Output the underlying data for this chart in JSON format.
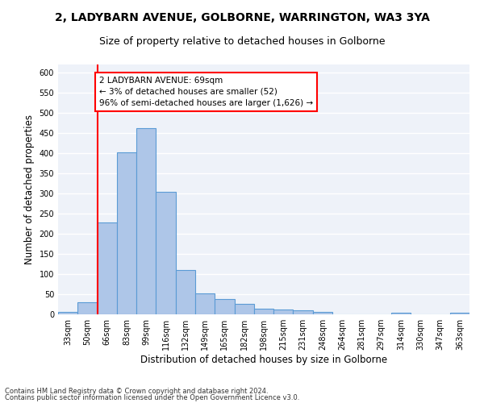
{
  "title": "2, LADYBARN AVENUE, GOLBORNE, WARRINGTON, WA3 3YA",
  "subtitle": "Size of property relative to detached houses in Golborne",
  "xlabel": "Distribution of detached houses by size in Golborne",
  "ylabel": "Number of detached properties",
  "categories": [
    "33sqm",
    "50sqm",
    "66sqm",
    "83sqm",
    "99sqm",
    "116sqm",
    "132sqm",
    "149sqm",
    "165sqm",
    "182sqm",
    "198sqm",
    "215sqm",
    "231sqm",
    "248sqm",
    "264sqm",
    "281sqm",
    "297sqm",
    "314sqm",
    "330sqm",
    "347sqm",
    "363sqm"
  ],
  "values": [
    7,
    30,
    228,
    403,
    463,
    305,
    110,
    53,
    39,
    26,
    14,
    12,
    10,
    6,
    0,
    0,
    0,
    5,
    0,
    0,
    5
  ],
  "bar_color": "#aec6e8",
  "bar_edge_color": "#5b9bd5",
  "property_line_x": 1.5,
  "annotation_text": "2 LADYBARN AVENUE: 69sqm\n← 3% of detached houses are smaller (52)\n96% of semi-detached houses are larger (1,626) →",
  "annotation_box_color": "white",
  "annotation_box_edge_color": "red",
  "vline_color": "red",
  "ylim": [
    0,
    620
  ],
  "yticks": [
    0,
    50,
    100,
    150,
    200,
    250,
    300,
    350,
    400,
    450,
    500,
    550,
    600
  ],
  "bg_color": "#eef2f9",
  "grid_color": "white",
  "footer1": "Contains HM Land Registry data © Crown copyright and database right 2024.",
  "footer2": "Contains public sector information licensed under the Open Government Licence v3.0.",
  "title_fontsize": 10,
  "subtitle_fontsize": 9,
  "axis_label_fontsize": 8.5,
  "tick_fontsize": 7,
  "annotation_fontsize": 7.5,
  "footer_fontsize": 6
}
